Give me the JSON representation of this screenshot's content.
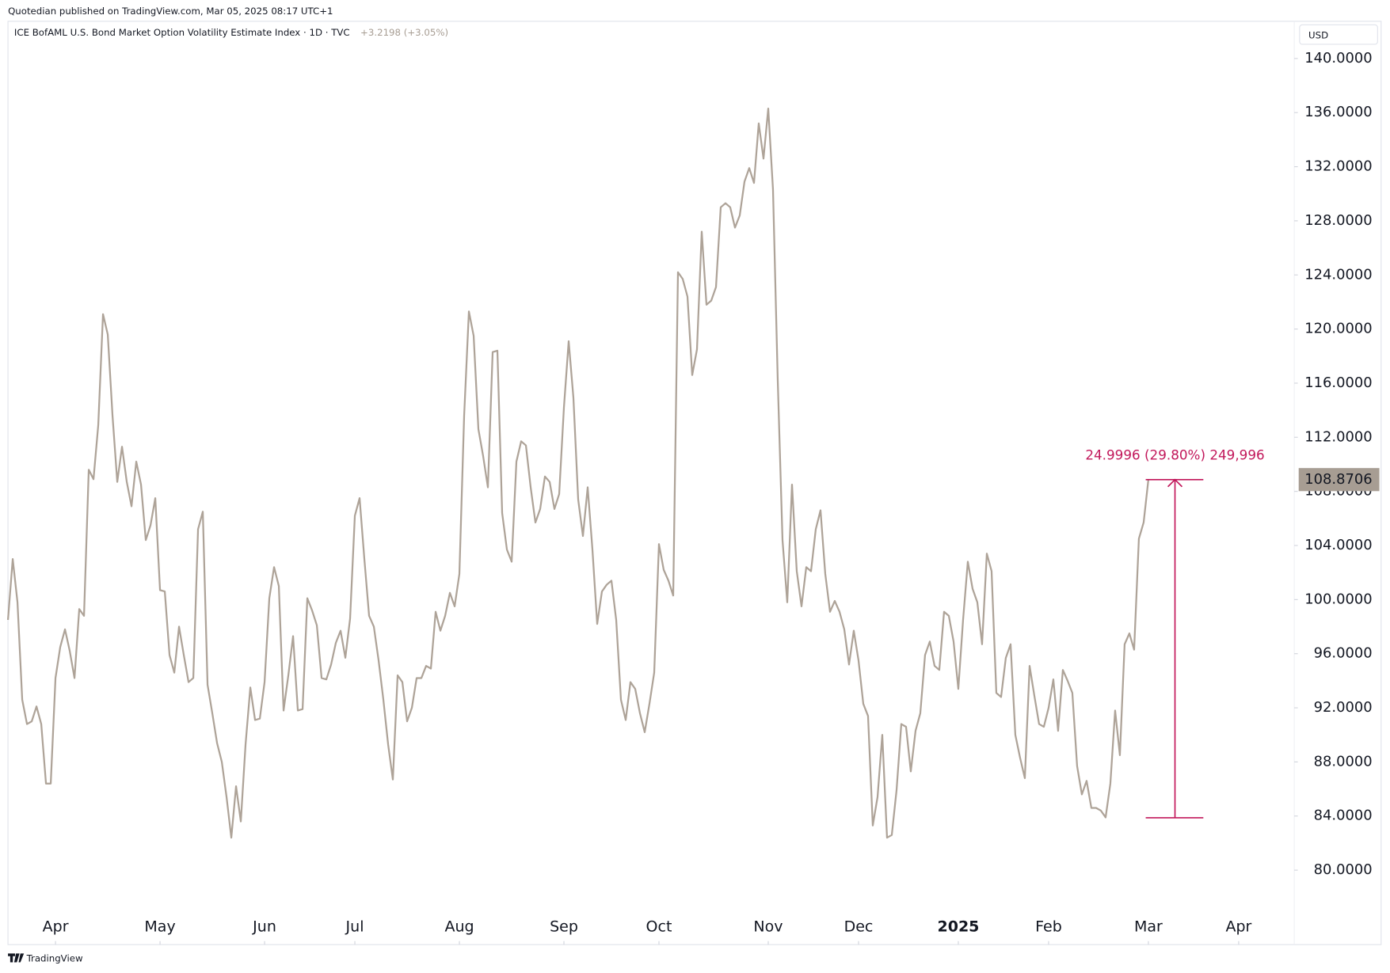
{
  "header": {
    "publisher": "Quotedian published on TradingView.com, Mar 05, 2025 08:17 UTC+1",
    "footer": "TradingView"
  },
  "chart_data": {
    "type": "line",
    "title": "ICE BofAML U.S. Bond Market Option Volatility Estimate Index · 1D · TVC",
    "change_label": "+3.2198 (+3.05%)",
    "currency": "USD",
    "color": "#aea398",
    "values": [
      98.5,
      103,
      99.8,
      92.6,
      90.8,
      91,
      92.1,
      90.8,
      86.4,
      86.4,
      94.2,
      96.5,
      97.8,
      96.2,
      94.2,
      99.3,
      98.8,
      109.6,
      108.9,
      112.9,
      121.1,
      119.6,
      113.6,
      108.7,
      111.3,
      108.7,
      106.9,
      110.2,
      108.5,
      104.4,
      105.5,
      107.5,
      100.7,
      100.6,
      95.9,
      94.6,
      98,
      95.9,
      93.9,
      94.2,
      105.2,
      106.5,
      93.7,
      91.6,
      89.4,
      88,
      85.4,
      82.4,
      86.2,
      83.6,
      89.3,
      93.5,
      91.1,
      91.2,
      93.9,
      100.1,
      102.4,
      101,
      91.8,
      94.4,
      97.3,
      91.8,
      91.9,
      100.1,
      99.2,
      98.1,
      94.2,
      94.1,
      95.2,
      96.8,
      97.7,
      95.7,
      98.6,
      106.2,
      107.5,
      103,
      98.8,
      98,
      95.5,
      92.6,
      89.3,
      86.7,
      94.4,
      93.9,
      91,
      92,
      94.2,
      94.2,
      95.1,
      94.9,
      99.1,
      97.7,
      98.8,
      100.5,
      99.5,
      101.9,
      113.6,
      121.3,
      119.5,
      112.6,
      110.6,
      108.3,
      118.3,
      118.4,
      106.4,
      103.7,
      102.8,
      110.2,
      111.7,
      111.4,
      108.3,
      105.7,
      106.7,
      109.1,
      108.7,
      106.7,
      107.8,
      114.2,
      119.1,
      114.9,
      107.4,
      104.7,
      108.3,
      103.7,
      98.2,
      100.6,
      101.1,
      101.4,
      98.5,
      92.6,
      91.1,
      93.9,
      93.4,
      91.6,
      90.2,
      92.3,
      94.6,
      104.1,
      102.2,
      101.4,
      100.3,
      124.2,
      123.7,
      122.4,
      116.6,
      118.5,
      127.2,
      121.8,
      122.1,
      123.1,
      129,
      129.3,
      129,
      127.5,
      128.4,
      130.9,
      131.9,
      130.8,
      135.2,
      132.6,
      136.3,
      130.3,
      116.2,
      104.4,
      99.8,
      108.5,
      102.1,
      99.5,
      102.4,
      102.1,
      105.2,
      106.6,
      101.9,
      99.1,
      99.9,
      99.1,
      97.8,
      95.2,
      97.7,
      95.5,
      92.3,
      91.4,
      83.3,
      85.4,
      90,
      82.4,
      82.6,
      85.9,
      90.8,
      90.6,
      87.3,
      90.3,
      91.6,
      95.9,
      96.9,
      95.1,
      94.8,
      99.1,
      98.8,
      96.9,
      93.4,
      98.5,
      102.8,
      100.8,
      99.8,
      96.7,
      103.4,
      102.1,
      93.1,
      92.8,
      95.7,
      96.7,
      90,
      88.3,
      86.8,
      95.1,
      92.9,
      90.8,
      90.6,
      92,
      94.1,
      90.3,
      94.8,
      94,
      93.1,
      87.7,
      85.6,
      86.6,
      84.6,
      84.6,
      84.4,
      83.9,
      86.4,
      91.8,
      88.5,
      96.7,
      97.5,
      96.3,
      104.5,
      105.7,
      108.8706
    ],
    "xlim": [
      0,
      270.7
    ],
    "xticks": [
      {
        "value": 10,
        "label": "Apr"
      },
      {
        "value": 32,
        "label": "May"
      },
      {
        "value": 54,
        "label": "Jun"
      },
      {
        "value": 73,
        "label": "Jul"
      },
      {
        "value": 95,
        "label": "Aug"
      },
      {
        "value": 117,
        "label": "Sep"
      },
      {
        "value": 137,
        "label": "Oct"
      },
      {
        "value": 160,
        "label": "Nov"
      },
      {
        "value": 179,
        "label": "Dec"
      },
      {
        "value": 200,
        "label": "2025",
        "bold": true
      },
      {
        "value": 219,
        "label": "Feb"
      },
      {
        "value": 240,
        "label": "Mar"
      },
      {
        "value": 259,
        "label": "Apr"
      }
    ],
    "ylim": [
      77.18,
      142.75
    ],
    "yticks": [
      {
        "value": 80,
        "label": "80.0000"
      },
      {
        "value": 84,
        "label": "84.0000"
      },
      {
        "value": 88,
        "label": "88.0000"
      },
      {
        "value": 92,
        "label": "92.0000"
      },
      {
        "value": 96,
        "label": "96.0000"
      },
      {
        "value": 100,
        "label": "100.0000"
      },
      {
        "value": 104,
        "label": "104.0000"
      },
      {
        "value": 108,
        "label": "108.0000"
      },
      {
        "value": 112,
        "label": "112.0000"
      },
      {
        "value": 116,
        "label": "116.0000"
      },
      {
        "value": 120,
        "label": "120.0000"
      },
      {
        "value": 124,
        "label": "124.0000"
      },
      {
        "value": 128,
        "label": "128.0000"
      },
      {
        "value": 132,
        "label": "132.0000"
      },
      {
        "value": 136,
        "label": "136.0000"
      },
      {
        "value": 140,
        "label": "140.0000"
      }
    ],
    "price_label_color": "#a79d93",
    "measure": {
      "label": "24.9996 (29.80%) 249,996",
      "from": 83.871,
      "to": 108.8706,
      "color": "#c2185b"
    }
  }
}
